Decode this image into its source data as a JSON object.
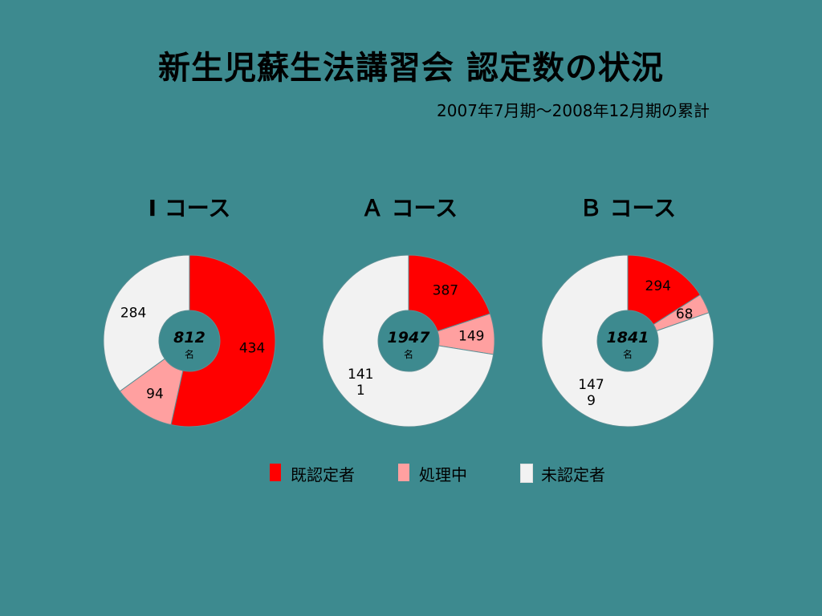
{
  "title": "新生児蘇生法講習会 認定数の状況",
  "subtitle": "2007年7月期～2008年12月期の累計",
  "colors": {
    "background": "#3d8a8f",
    "certified": "#ff0000",
    "processing": "#ffa0a0",
    "uncertified": "#f2f2f2"
  },
  "legend": [
    {
      "label": "既認定者",
      "color": "#ff0000"
    },
    {
      "label": "処理中",
      "color": "#ffa0a0"
    },
    {
      "label": "未認定者",
      "color": "#f2f2f2"
    }
  ],
  "chart_data": [
    {
      "type": "pie",
      "title": "Ⅰ コース",
      "total": "812",
      "unit": "名",
      "series": [
        {
          "name": "既認定者",
          "value": 434,
          "label": "434"
        },
        {
          "name": "処理中",
          "value": 94,
          "label": "94"
        },
        {
          "name": "未認定者",
          "value": 284,
          "label": "284"
        }
      ]
    },
    {
      "type": "pie",
      "title": "Ａ コース",
      "total": "1947",
      "unit": "名",
      "series": [
        {
          "name": "既認定者",
          "value": 387,
          "label": "387"
        },
        {
          "name": "処理中",
          "value": 149,
          "label": "149"
        },
        {
          "name": "未認定者",
          "value": 1411,
          "label": "141\n1"
        }
      ]
    },
    {
      "type": "pie",
      "title": "Ｂ コース",
      "total": "1841",
      "unit": "名",
      "series": [
        {
          "name": "既認定者",
          "value": 294,
          "label": "294"
        },
        {
          "name": "処理中",
          "value": 68,
          "label": "68"
        },
        {
          "name": "未認定者",
          "value": 1479,
          "label": "147\n9"
        }
      ]
    }
  ]
}
